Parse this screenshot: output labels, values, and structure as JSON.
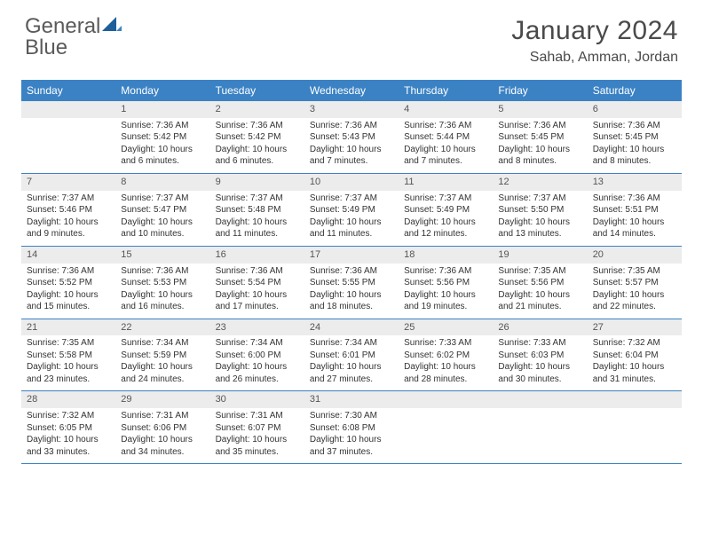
{
  "logo": {
    "text_gray": "General",
    "text_blue": "Blue"
  },
  "title": "January 2024",
  "location": "Sahab, Amman, Jordan",
  "colors": {
    "header_bg": "#3b82c4",
    "header_fg": "#ffffff",
    "daynum_bg": "#ececec",
    "rule": "#3b82c4",
    "text": "#333333"
  },
  "day_names": [
    "Sunday",
    "Monday",
    "Tuesday",
    "Wednesday",
    "Thursday",
    "Friday",
    "Saturday"
  ],
  "weeks": [
    [
      {
        "n": "",
        "sr": "",
        "ss": "",
        "dl": ""
      },
      {
        "n": "1",
        "sr": "Sunrise: 7:36 AM",
        "ss": "Sunset: 5:42 PM",
        "dl": "Daylight: 10 hours and 6 minutes."
      },
      {
        "n": "2",
        "sr": "Sunrise: 7:36 AM",
        "ss": "Sunset: 5:42 PM",
        "dl": "Daylight: 10 hours and 6 minutes."
      },
      {
        "n": "3",
        "sr": "Sunrise: 7:36 AM",
        "ss": "Sunset: 5:43 PM",
        "dl": "Daylight: 10 hours and 7 minutes."
      },
      {
        "n": "4",
        "sr": "Sunrise: 7:36 AM",
        "ss": "Sunset: 5:44 PM",
        "dl": "Daylight: 10 hours and 7 minutes."
      },
      {
        "n": "5",
        "sr": "Sunrise: 7:36 AM",
        "ss": "Sunset: 5:45 PM",
        "dl": "Daylight: 10 hours and 8 minutes."
      },
      {
        "n": "6",
        "sr": "Sunrise: 7:36 AM",
        "ss": "Sunset: 5:45 PM",
        "dl": "Daylight: 10 hours and 8 minutes."
      }
    ],
    [
      {
        "n": "7",
        "sr": "Sunrise: 7:37 AM",
        "ss": "Sunset: 5:46 PM",
        "dl": "Daylight: 10 hours and 9 minutes."
      },
      {
        "n": "8",
        "sr": "Sunrise: 7:37 AM",
        "ss": "Sunset: 5:47 PM",
        "dl": "Daylight: 10 hours and 10 minutes."
      },
      {
        "n": "9",
        "sr": "Sunrise: 7:37 AM",
        "ss": "Sunset: 5:48 PM",
        "dl": "Daylight: 10 hours and 11 minutes."
      },
      {
        "n": "10",
        "sr": "Sunrise: 7:37 AM",
        "ss": "Sunset: 5:49 PM",
        "dl": "Daylight: 10 hours and 11 minutes."
      },
      {
        "n": "11",
        "sr": "Sunrise: 7:37 AM",
        "ss": "Sunset: 5:49 PM",
        "dl": "Daylight: 10 hours and 12 minutes."
      },
      {
        "n": "12",
        "sr": "Sunrise: 7:37 AM",
        "ss": "Sunset: 5:50 PM",
        "dl": "Daylight: 10 hours and 13 minutes."
      },
      {
        "n": "13",
        "sr": "Sunrise: 7:36 AM",
        "ss": "Sunset: 5:51 PM",
        "dl": "Daylight: 10 hours and 14 minutes."
      }
    ],
    [
      {
        "n": "14",
        "sr": "Sunrise: 7:36 AM",
        "ss": "Sunset: 5:52 PM",
        "dl": "Daylight: 10 hours and 15 minutes."
      },
      {
        "n": "15",
        "sr": "Sunrise: 7:36 AM",
        "ss": "Sunset: 5:53 PM",
        "dl": "Daylight: 10 hours and 16 minutes."
      },
      {
        "n": "16",
        "sr": "Sunrise: 7:36 AM",
        "ss": "Sunset: 5:54 PM",
        "dl": "Daylight: 10 hours and 17 minutes."
      },
      {
        "n": "17",
        "sr": "Sunrise: 7:36 AM",
        "ss": "Sunset: 5:55 PM",
        "dl": "Daylight: 10 hours and 18 minutes."
      },
      {
        "n": "18",
        "sr": "Sunrise: 7:36 AM",
        "ss": "Sunset: 5:56 PM",
        "dl": "Daylight: 10 hours and 19 minutes."
      },
      {
        "n": "19",
        "sr": "Sunrise: 7:35 AM",
        "ss": "Sunset: 5:56 PM",
        "dl": "Daylight: 10 hours and 21 minutes."
      },
      {
        "n": "20",
        "sr": "Sunrise: 7:35 AM",
        "ss": "Sunset: 5:57 PM",
        "dl": "Daylight: 10 hours and 22 minutes."
      }
    ],
    [
      {
        "n": "21",
        "sr": "Sunrise: 7:35 AM",
        "ss": "Sunset: 5:58 PM",
        "dl": "Daylight: 10 hours and 23 minutes."
      },
      {
        "n": "22",
        "sr": "Sunrise: 7:34 AM",
        "ss": "Sunset: 5:59 PM",
        "dl": "Daylight: 10 hours and 24 minutes."
      },
      {
        "n": "23",
        "sr": "Sunrise: 7:34 AM",
        "ss": "Sunset: 6:00 PM",
        "dl": "Daylight: 10 hours and 26 minutes."
      },
      {
        "n": "24",
        "sr": "Sunrise: 7:34 AM",
        "ss": "Sunset: 6:01 PM",
        "dl": "Daylight: 10 hours and 27 minutes."
      },
      {
        "n": "25",
        "sr": "Sunrise: 7:33 AM",
        "ss": "Sunset: 6:02 PM",
        "dl": "Daylight: 10 hours and 28 minutes."
      },
      {
        "n": "26",
        "sr": "Sunrise: 7:33 AM",
        "ss": "Sunset: 6:03 PM",
        "dl": "Daylight: 10 hours and 30 minutes."
      },
      {
        "n": "27",
        "sr": "Sunrise: 7:32 AM",
        "ss": "Sunset: 6:04 PM",
        "dl": "Daylight: 10 hours and 31 minutes."
      }
    ],
    [
      {
        "n": "28",
        "sr": "Sunrise: 7:32 AM",
        "ss": "Sunset: 6:05 PM",
        "dl": "Daylight: 10 hours and 33 minutes."
      },
      {
        "n": "29",
        "sr": "Sunrise: 7:31 AM",
        "ss": "Sunset: 6:06 PM",
        "dl": "Daylight: 10 hours and 34 minutes."
      },
      {
        "n": "30",
        "sr": "Sunrise: 7:31 AM",
        "ss": "Sunset: 6:07 PM",
        "dl": "Daylight: 10 hours and 35 minutes."
      },
      {
        "n": "31",
        "sr": "Sunrise: 7:30 AM",
        "ss": "Sunset: 6:08 PM",
        "dl": "Daylight: 10 hours and 37 minutes."
      },
      {
        "n": "",
        "sr": "",
        "ss": "",
        "dl": ""
      },
      {
        "n": "",
        "sr": "",
        "ss": "",
        "dl": ""
      },
      {
        "n": "",
        "sr": "",
        "ss": "",
        "dl": ""
      }
    ]
  ]
}
